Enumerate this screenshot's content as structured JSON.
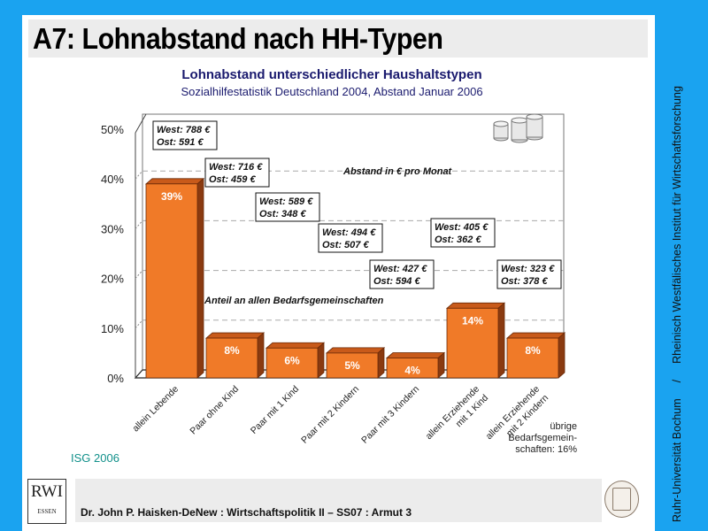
{
  "slide": {
    "title": "A7: Lohnabstand nach HH-Typen",
    "side_text_left": "Ruhr-Universität Bochum",
    "side_text_sep": "/",
    "side_text_right": "Rheinisch Westfälisches Institut für Wirtschaftsforschung",
    "source": "ISG 2006",
    "footer": "Dr. John P. Haisken-DeNew : Wirtschaftspolitik II – SS07 : Armut 3",
    "logo_top": "RWI",
    "logo_bottom": "ESSEN",
    "other_note": [
      "übrige",
      "Bedarfsgemein-",
      "schaften: 16%"
    ],
    "colors": {
      "background": "#1aa3f0",
      "bar": "#f07a28",
      "title_text": "#1a1a6e",
      "source_text": "#11908a"
    }
  },
  "chart_data": {
    "type": "bar",
    "title": "Lohnabstand unterschiedlicher Haushaltstypen",
    "subtitle": "Sozialhilfestatistik Deutschland 2004, Abstand Januar 2006",
    "xlabel": "",
    "ylabel": "",
    "ylim": [
      0,
      50
    ],
    "yticks": [
      "0%",
      "10%",
      "20%",
      "30%",
      "40%",
      "50%"
    ],
    "grid": true,
    "categories": [
      [
        "allein Lebende"
      ],
      [
        "Paar ohne Kind"
      ],
      [
        "Paar mit 1 Kind"
      ],
      [
        "Paar mit 2 Kindern"
      ],
      [
        "Paar mit 3 Kindern"
      ],
      [
        "allein Erziehende",
        "mit 1 Kind"
      ],
      [
        "allein Erziehende",
        "mit 2 Kindern"
      ]
    ],
    "series": [
      {
        "name": "Anteil an allen Bedarfsgemeinschaften",
        "values": [
          39,
          8,
          6,
          5,
          4,
          14,
          8
        ],
        "labels": [
          "39%",
          "8%",
          "6%",
          "5%",
          "4%",
          "14%",
          "8%"
        ]
      }
    ],
    "wage_gap": {
      "name": "Abstand in € pro Monat",
      "west": [
        "West: 788 €",
        "West: 716 €",
        "West: 589 €",
        "West: 494 €",
        "West: 427 €",
        "West: 405 €",
        "West: 323 €"
      ],
      "ost": [
        "Ost:   591 €",
        "Ost:   459 €",
        "Ost:   348 €",
        "Ost:   507 €",
        "Ost:   594 €",
        "Ost:   362 €",
        "Ost:   378 €"
      ],
      "west_values": [
        788,
        716,
        589,
        494,
        427,
        405,
        323
      ],
      "ost_values": [
        591,
        459,
        348,
        507,
        594,
        362,
        378
      ]
    },
    "annotations": [
      "Abstand in € pro Monat",
      "Anteil an allen Bedarfsgemeinschaften"
    ],
    "decoration": "coins-icon"
  }
}
